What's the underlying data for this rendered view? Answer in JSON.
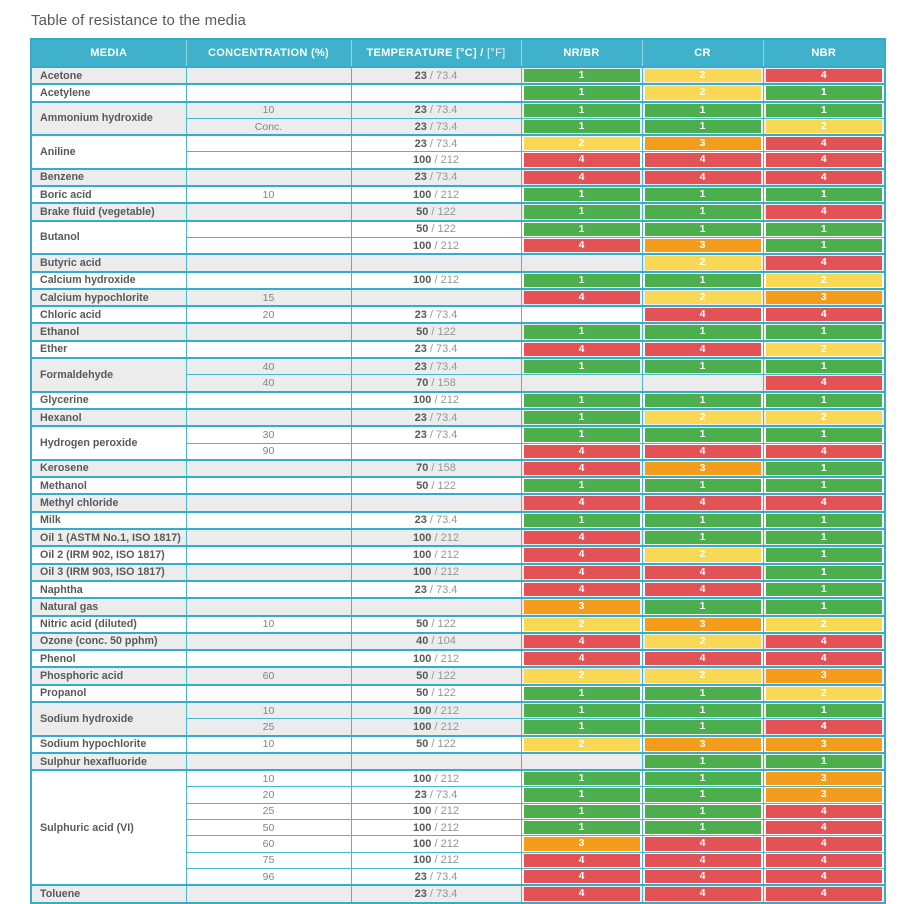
{
  "title": "Table of resistance to the media",
  "header": {
    "media": "MEDIA",
    "concentration": "CONCENTRATION (%)",
    "temperature_main": "TEMPERATURE [°C] / ",
    "temperature_light": "[°F]",
    "nr_br": "NR/BR",
    "cr": "CR",
    "nbr": "NBR"
  },
  "temp_separator": " / ",
  "rating_keys": [
    "nr_br",
    "cr",
    "nbr"
  ],
  "legend": {
    "rating_colors": {
      "1": "#4cae4c",
      "2": "#f8d855",
      "3": "#f49c1c",
      "4": "#e35356"
    },
    "header_bg": "#3fb1cb",
    "border_color": "#49b7d0",
    "group_border_color": "#35adc8",
    "stripe_bg": "#ececec",
    "media_text_color": "#58595b",
    "secondary_text_color": "#808285"
  },
  "groups": [
    {
      "media": "Acetone",
      "rows": [
        {
          "conc": "",
          "c": "23",
          "f": "73.4",
          "r": [
            1,
            2,
            4
          ]
        }
      ]
    },
    {
      "media": "Acetylene",
      "rows": [
        {
          "conc": "",
          "c": null,
          "f": null,
          "r": [
            1,
            2,
            1
          ]
        }
      ]
    },
    {
      "media": "Ammonium hydroxide",
      "rows": [
        {
          "conc": "10",
          "c": "23",
          "f": "73.4",
          "r": [
            1,
            1,
            1
          ]
        },
        {
          "conc": "Conc.",
          "c": "23",
          "f": "73.4",
          "r": [
            1,
            1,
            2
          ]
        }
      ]
    },
    {
      "media": "Aniline",
      "rows": [
        {
          "conc": "",
          "c": "23",
          "f": "73.4",
          "r": [
            2,
            3,
            4
          ]
        },
        {
          "conc": "",
          "c": "100",
          "f": "212",
          "r": [
            4,
            4,
            4
          ]
        }
      ]
    },
    {
      "media": "Benzene",
      "rows": [
        {
          "conc": "",
          "c": "23",
          "f": "73.4",
          "r": [
            4,
            4,
            4
          ]
        }
      ]
    },
    {
      "media": "Boric acid",
      "rows": [
        {
          "conc": "10",
          "c": "100",
          "f": "212",
          "r": [
            1,
            1,
            1
          ]
        }
      ]
    },
    {
      "media": "Brake fluid (vegetable)",
      "rows": [
        {
          "conc": "",
          "c": "50",
          "f": "122",
          "r": [
            1,
            1,
            4
          ]
        }
      ]
    },
    {
      "media": "Butanol",
      "rows": [
        {
          "conc": "",
          "c": "50",
          "f": "122",
          "r": [
            1,
            1,
            1
          ]
        },
        {
          "conc": "",
          "c": "100",
          "f": "212",
          "r": [
            4,
            3,
            1
          ]
        }
      ]
    },
    {
      "media": "Butyric acid",
      "rows": [
        {
          "conc": "",
          "c": null,
          "f": null,
          "r": [
            null,
            2,
            4
          ]
        }
      ]
    },
    {
      "media": "Calcium hydroxide",
      "rows": [
        {
          "conc": "",
          "c": "100",
          "f": "212",
          "r": [
            1,
            1,
            2
          ]
        }
      ]
    },
    {
      "media": "Calcium hypochlorite",
      "rows": [
        {
          "conc": "15",
          "c": null,
          "f": null,
          "r": [
            4,
            2,
            3
          ]
        }
      ]
    },
    {
      "media": "Chloric acid",
      "rows": [
        {
          "conc": "20",
          "c": "23",
          "f": "73.4",
          "r": [
            null,
            4,
            4
          ]
        }
      ]
    },
    {
      "media": "Ethanol",
      "rows": [
        {
          "conc": "",
          "c": "50",
          "f": "122",
          "r": [
            1,
            1,
            1
          ]
        }
      ]
    },
    {
      "media": "Ether",
      "rows": [
        {
          "conc": "",
          "c": "23",
          "f": "73.4",
          "r": [
            4,
            4,
            2
          ]
        }
      ]
    },
    {
      "media": "Formaldehyde",
      "rows": [
        {
          "conc": "40",
          "c": "23",
          "f": "73.4",
          "r": [
            1,
            1,
            1
          ]
        },
        {
          "conc": "40",
          "c": "70",
          "f": "158",
          "r": [
            null,
            null,
            4
          ]
        }
      ]
    },
    {
      "media": "Glycerine",
      "rows": [
        {
          "conc": "",
          "c": "100",
          "f": "212",
          "r": [
            1,
            1,
            1
          ]
        }
      ]
    },
    {
      "media": "Hexanol",
      "rows": [
        {
          "conc": "",
          "c": "23",
          "f": "73.4",
          "r": [
            1,
            2,
            2
          ]
        }
      ]
    },
    {
      "media": "Hydrogen peroxide",
      "rows": [
        {
          "conc": "30",
          "c": "23",
          "f": "73.4",
          "r": [
            1,
            1,
            1
          ]
        },
        {
          "conc": "90",
          "c": null,
          "f": null,
          "r": [
            4,
            4,
            4
          ]
        }
      ]
    },
    {
      "media": "Kerosene",
      "rows": [
        {
          "conc": "",
          "c": "70",
          "f": "158",
          "r": [
            4,
            3,
            1
          ]
        }
      ]
    },
    {
      "media": "Methanol",
      "rows": [
        {
          "conc": "",
          "c": "50",
          "f": "122",
          "r": [
            1,
            1,
            1
          ]
        }
      ]
    },
    {
      "media": "Methyl chloride",
      "rows": [
        {
          "conc": "",
          "c": null,
          "f": null,
          "r": [
            4,
            4,
            4
          ]
        }
      ]
    },
    {
      "media": "Milk",
      "rows": [
        {
          "conc": "",
          "c": "23",
          "f": "73.4",
          "r": [
            1,
            1,
            1
          ]
        }
      ]
    },
    {
      "media": "Oil 1 (ASTM No.1, ISO 1817)",
      "rows": [
        {
          "conc": "",
          "c": "100",
          "f": "212",
          "r": [
            4,
            1,
            1
          ]
        }
      ]
    },
    {
      "media": "Oil 2 (IRM 902, ISO 1817)",
      "rows": [
        {
          "conc": "",
          "c": "100",
          "f": "212",
          "r": [
            4,
            2,
            1
          ]
        }
      ]
    },
    {
      "media": "Oil 3 (IRM 903, ISO 1817)",
      "rows": [
        {
          "conc": "",
          "c": "100",
          "f": "212",
          "r": [
            4,
            4,
            1
          ]
        }
      ]
    },
    {
      "media": "Naphtha",
      "rows": [
        {
          "conc": "",
          "c": "23",
          "f": "73.4",
          "r": [
            4,
            4,
            1
          ]
        }
      ]
    },
    {
      "media": "Natural gas",
      "rows": [
        {
          "conc": "",
          "c": null,
          "f": null,
          "r": [
            3,
            1,
            1
          ]
        }
      ]
    },
    {
      "media": "Nitric acid (diluted)",
      "rows": [
        {
          "conc": "10",
          "c": "50",
          "f": "122",
          "r": [
            2,
            3,
            2
          ]
        }
      ]
    },
    {
      "media": "Ozone (conc. 50 pphm)",
      "rows": [
        {
          "conc": "",
          "c": "40",
          "f": "104",
          "r": [
            4,
            2,
            4
          ]
        }
      ]
    },
    {
      "media": "Phenol",
      "rows": [
        {
          "conc": "",
          "c": "100",
          "f": "212",
          "r": [
            4,
            4,
            4
          ]
        }
      ]
    },
    {
      "media": "Phosphoric acid",
      "rows": [
        {
          "conc": "60",
          "c": "50",
          "f": "122",
          "r": [
            2,
            2,
            3
          ]
        }
      ]
    },
    {
      "media": "Propanol",
      "rows": [
        {
          "conc": "",
          "c": "50",
          "f": "122",
          "r": [
            1,
            1,
            2
          ]
        }
      ]
    },
    {
      "media": "Sodium hydroxide",
      "rows": [
        {
          "conc": "10",
          "c": "100",
          "f": "212",
          "r": [
            1,
            1,
            1
          ]
        },
        {
          "conc": "25",
          "c": "100",
          "f": "212",
          "r": [
            1,
            1,
            4
          ]
        }
      ]
    },
    {
      "media": "Sodium hypochlorite",
      "rows": [
        {
          "conc": "10",
          "c": "50",
          "f": "122",
          "r": [
            2,
            3,
            3
          ]
        }
      ]
    },
    {
      "media": "Sulphur hexafluoride",
      "rows": [
        {
          "conc": "",
          "c": null,
          "f": null,
          "r": [
            null,
            1,
            1
          ]
        }
      ]
    },
    {
      "media": "Sulphuric acid (VI)",
      "rows": [
        {
          "conc": "10",
          "c": "100",
          "f": "212",
          "r": [
            1,
            1,
            3
          ]
        },
        {
          "conc": "20",
          "c": "23",
          "f": "73.4",
          "r": [
            1,
            1,
            3
          ]
        },
        {
          "conc": "25",
          "c": "100",
          "f": "212",
          "r": [
            1,
            1,
            4
          ]
        },
        {
          "conc": "50",
          "c": "100",
          "f": "212",
          "r": [
            1,
            1,
            4
          ]
        },
        {
          "conc": "60",
          "c": "100",
          "f": "212",
          "r": [
            3,
            4,
            4
          ]
        },
        {
          "conc": "75",
          "c": "100",
          "f": "212",
          "r": [
            4,
            4,
            4
          ]
        },
        {
          "conc": "96",
          "c": "23",
          "f": "73.4",
          "r": [
            4,
            4,
            4
          ]
        }
      ]
    },
    {
      "media": "Toluene",
      "rows": [
        {
          "conc": "",
          "c": "23",
          "f": "73.4",
          "r": [
            4,
            4,
            4
          ]
        }
      ]
    }
  ]
}
